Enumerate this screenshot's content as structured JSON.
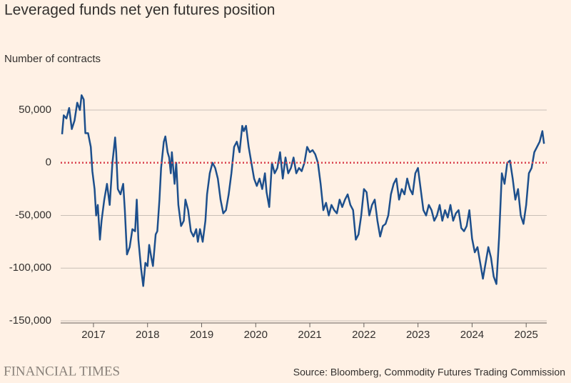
{
  "chart_data": {
    "type": "line",
    "title": "Leveraged funds net yen futures position",
    "subtitle": "Number of contracts",
    "source": "Source: Bloomberg, Commodity Futures Trading Commission",
    "brand": "FINANCIAL TIMES",
    "color": "#1d4f8c",
    "zero_line_color": "#d9414e",
    "grid": true,
    "xlim": [
      2016.42,
      2025.38
    ],
    "xticks": [
      2017,
      2018,
      2019,
      2020,
      2021,
      2022,
      2023,
      2024,
      2025
    ],
    "ylim": [
      -150000,
      70000
    ],
    "yticks": [
      {
        "value": -150000,
        "label": "-150,000"
      },
      {
        "value": -100000,
        "label": "-100,000"
      },
      {
        "value": -50000,
        "label": "-50,000"
      },
      0,
      {
        "value": 50000,
        "label": "50,000"
      }
    ],
    "x": [
      2016.42,
      2016.45,
      2016.5,
      2016.55,
      2016.6,
      2016.65,
      2016.7,
      2016.75,
      2016.78,
      2016.82,
      2016.85,
      2016.9,
      2016.95,
      2016.98,
      2017.02,
      2017.05,
      2017.08,
      2017.12,
      2017.15,
      2017.2,
      2017.25,
      2017.3,
      2017.35,
      2017.4,
      2017.42,
      2017.45,
      2017.5,
      2017.55,
      2017.58,
      2017.62,
      2017.67,
      2017.72,
      2017.77,
      2017.8,
      2017.83,
      2017.88,
      2017.92,
      2017.96,
      2018.0,
      2018.03,
      2018.07,
      2018.1,
      2018.15,
      2018.18,
      2018.22,
      2018.25,
      2018.3,
      2018.33,
      2018.37,
      2018.4,
      2018.43,
      2018.45,
      2018.5,
      2018.53,
      2018.57,
      2018.62,
      2018.67,
      2018.7,
      2018.75,
      2018.8,
      2018.85,
      2018.9,
      2018.93,
      2018.97,
      2019.02,
      2019.07,
      2019.1,
      2019.15,
      2019.2,
      2019.25,
      2019.3,
      2019.35,
      2019.4,
      2019.45,
      2019.5,
      2019.55,
      2019.6,
      2019.65,
      2019.7,
      2019.75,
      2019.78,
      2019.82,
      2019.87,
      2019.92,
      2019.97,
      2020.02,
      2020.07,
      2020.12,
      2020.17,
      2020.2,
      2020.25,
      2020.3,
      2020.35,
      2020.4,
      2020.45,
      2020.5,
      2020.55,
      2020.6,
      2020.65,
      2020.7,
      2020.75,
      2020.8,
      2020.85,
      2020.9,
      2020.95,
      2021.0,
      2021.05,
      2021.1,
      2021.15,
      2021.2,
      2021.25,
      2021.3,
      2021.35,
      2021.4,
      2021.45,
      2021.5,
      2021.55,
      2021.6,
      2021.65,
      2021.7,
      2021.75,
      2021.8,
      2021.85,
      2021.9,
      2021.95,
      2022.0,
      2022.05,
      2022.1,
      2022.15,
      2022.2,
      2022.25,
      2022.3,
      2022.35,
      2022.4,
      2022.45,
      2022.5,
      2022.55,
      2022.6,
      2022.65,
      2022.7,
      2022.75,
      2022.8,
      2022.85,
      2022.9,
      2022.95,
      2023.0,
      2023.05,
      2023.1,
      2023.15,
      2023.2,
      2023.25,
      2023.3,
      2023.35,
      2023.4,
      2023.45,
      2023.5,
      2023.55,
      2023.6,
      2023.65,
      2023.7,
      2023.75,
      2023.8,
      2023.85,
      2023.9,
      2023.95,
      2024.0,
      2024.05,
      2024.1,
      2024.15,
      2024.2,
      2024.25,
      2024.3,
      2024.35,
      2024.4,
      2024.45,
      2024.5,
      2024.55,
      2024.6,
      2024.65,
      2024.7,
      2024.75,
      2024.8,
      2024.85,
      2024.9,
      2024.95,
      2025.0,
      2025.05,
      2025.1,
      2025.15,
      2025.2,
      2025.25,
      2025.3,
      2025.33
    ],
    "values": [
      27000,
      45000,
      42000,
      52000,
      32000,
      40000,
      57000,
      50000,
      64000,
      60000,
      28000,
      28000,
      15000,
      -8000,
      -25000,
      -50000,
      -40000,
      -73000,
      -55000,
      -35000,
      -20000,
      -40000,
      0,
      24000,
      10000,
      -25000,
      -30000,
      -20000,
      -45000,
      -87000,
      -80000,
      -63000,
      -65000,
      -35000,
      -73000,
      -100000,
      -117000,
      -95000,
      -98000,
      -78000,
      -90000,
      -98000,
      -68000,
      -65000,
      -35000,
      -5000,
      20000,
      25000,
      10000,
      5000,
      -10000,
      10000,
      -20000,
      0,
      -40000,
      -60000,
      -55000,
      -35000,
      -45000,
      -65000,
      -70000,
      -63000,
      -75000,
      -63000,
      -75000,
      -55000,
      -30000,
      -10000,
      0,
      -5000,
      -15000,
      -35000,
      -48000,
      -45000,
      -30000,
      -10000,
      15000,
      20000,
      10000,
      35000,
      30000,
      35000,
      15000,
      0,
      -15000,
      -22000,
      -15000,
      -25000,
      -10000,
      -28000,
      -42000,
      0,
      -10000,
      -5000,
      10000,
      -15000,
      5000,
      -10000,
      -5000,
      5000,
      -10000,
      -5000,
      -8000,
      0,
      15000,
      10000,
      12000,
      8000,
      0,
      -20000,
      -45000,
      -38000,
      -50000,
      -40000,
      -45000,
      -48000,
      -35000,
      -42000,
      -35000,
      -30000,
      -40000,
      -45000,
      -73000,
      -68000,
      -50000,
      -25000,
      -28000,
      -50000,
      -40000,
      -35000,
      -55000,
      -70000,
      -60000,
      -58000,
      -50000,
      -30000,
      -20000,
      -15000,
      -35000,
      -25000,
      -30000,
      -15000,
      -25000,
      -30000,
      -10000,
      -5000,
      -25000,
      -45000,
      -50000,
      -40000,
      -45000,
      -55000,
      -50000,
      -40000,
      -55000,
      -45000,
      -52000,
      -40000,
      -55000,
      -48000,
      -45000,
      -62000,
      -65000,
      -60000,
      -45000,
      -72000,
      -85000,
      -80000,
      -95000,
      -110000,
      -95000,
      -80000,
      -90000,
      -108000,
      -115000,
      -70000,
      -10000,
      -20000,
      0,
      2000,
      -15000,
      -35000,
      -25000,
      -50000,
      -58000,
      -40000,
      -10000,
      -5000,
      10000,
      15000,
      20000,
      30000,
      18000
    ]
  }
}
